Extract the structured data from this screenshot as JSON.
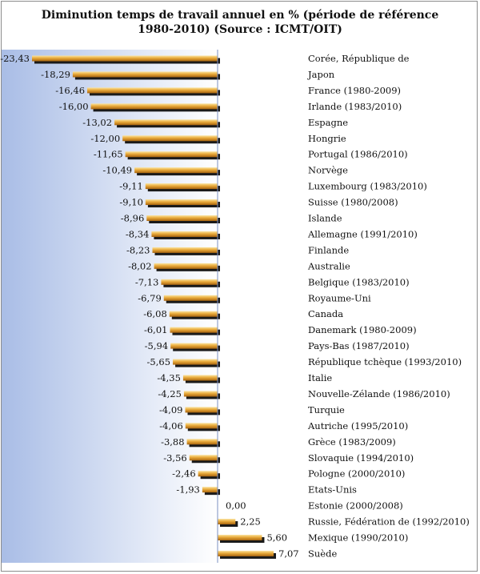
{
  "chart_data": {
    "type": "bar",
    "orientation": "horizontal",
    "title_line1": "Diminution temps de travail annuel en % (période de référence",
    "title_line2": "1980-2010) (Source : ICMT/OIT)",
    "categories": [
      "Corée, République de",
      "Japon",
      "France (1980-2009)",
      "Irlande (1983/2010)",
      "Espagne",
      "Hongrie",
      "Portugal (1986/2010)",
      "Norvège",
      "Luxembourg (1983/2010)",
      "Suisse (1980/2008)",
      "Islande",
      "Allemagne (1991/2010)",
      "Finlande",
      "Australie",
      "Belgique (1983/2010)",
      "Royaume-Uni",
      "Canada",
      "Danemark (1980-2009)",
      "Pays-Bas (1987/2010)",
      "République tchèque (1993/2010)",
      "Italie",
      "Nouvelle-Zélande (1986/2010)",
      "Turquie",
      "Autriche (1995/2010)",
      "Grèce (1983/2009)",
      "Slovaquie (1994/2010)",
      "Pologne (2000/2010)",
      "Etats-Unis",
      "Estonie (2000/2008)",
      "Russie, Fédération de (1992/2010)",
      "Mexique (1990/2010)",
      "Suède"
    ],
    "values": [
      -23.43,
      -18.29,
      -16.46,
      -16.0,
      -13.02,
      -12.0,
      -11.65,
      -10.49,
      -9.11,
      -9.1,
      -8.96,
      -8.34,
      -8.23,
      -8.02,
      -7.13,
      -6.79,
      -6.08,
      -6.01,
      -5.94,
      -5.65,
      -4.35,
      -4.25,
      -4.09,
      -4.06,
      -3.88,
      -3.56,
      -2.46,
      -1.93,
      0.0,
      2.25,
      5.6,
      7.07
    ],
    "value_labels": [
      "-23,43",
      "-18,29",
      "-16,46",
      "-16,00",
      "-13,02",
      "-12,00",
      "-11,65",
      "-10,49",
      "-9,11",
      "-9,10",
      "-8,96",
      "-8,34",
      "-8,23",
      "-8,02",
      "-7,13",
      "-6,79",
      "-6,08",
      "-6,01",
      "-5,94",
      "-5,65",
      "-4,35",
      "-4,25",
      "-4,09",
      "-4,06",
      "-3,88",
      "-3,56",
      "-2,46",
      "-1,93",
      "0,00",
      "2,25",
      "5,60",
      "7,07"
    ],
    "xlim": [
      -23.43,
      7.07
    ],
    "grid": false,
    "colors": {
      "bar_light": "#fbe4a0",
      "bar_mid": "#e8a93a",
      "bar_dark": "#a8640f",
      "bar_shadow": "#1a1a1a",
      "plot_bg_left": "#a9bde6",
      "plot_bg_right": "#ffffff",
      "axis": "#7a8fc0"
    }
  }
}
